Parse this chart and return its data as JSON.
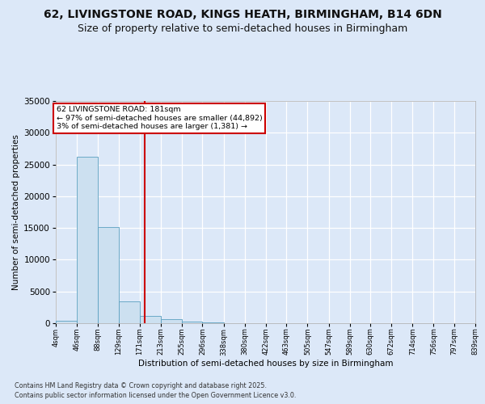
{
  "title_line1": "62, LIVINGSTONE ROAD, KINGS HEATH, BIRMINGHAM, B14 6DN",
  "title_line2": "Size of property relative to semi-detached houses in Birmingham",
  "xlabel": "Distribution of semi-detached houses by size in Birmingham",
  "ylabel": "Number of semi-detached properties",
  "footnote1": "Contains HM Land Registry data © Crown copyright and database right 2025.",
  "footnote2": "Contains public sector information licensed under the Open Government Licence v3.0.",
  "annotation_title": "62 LIVINGSTONE ROAD: 181sqm",
  "annotation_line1": "← 97% of semi-detached houses are smaller (44,892)",
  "annotation_line2": "3% of semi-detached houses are larger (1,381) →",
  "property_size": 181,
  "bin_edges": [
    4,
    46,
    88,
    129,
    171,
    213,
    255,
    296,
    338,
    380,
    422,
    463,
    505,
    547,
    589,
    630,
    672,
    714,
    756,
    797,
    839
  ],
  "bin_labels": [
    "4sqm",
    "46sqm",
    "88sqm",
    "129sqm",
    "171sqm",
    "213sqm",
    "255sqm",
    "296sqm",
    "338sqm",
    "380sqm",
    "422sqm",
    "463sqm",
    "505sqm",
    "547sqm",
    "589sqm",
    "630sqm",
    "672sqm",
    "714sqm",
    "756sqm",
    "797sqm",
    "839sqm"
  ],
  "bar_values": [
    400,
    26200,
    15200,
    3400,
    1100,
    600,
    280,
    110,
    45,
    18,
    10,
    5,
    3,
    2,
    1,
    1,
    0,
    0,
    0,
    0
  ],
  "bar_color": "#cce0f0",
  "bar_edge_color": "#5a9fc0",
  "vline_color": "#cc0000",
  "vline_x": 181,
  "ylim": [
    0,
    35000
  ],
  "yticks": [
    0,
    5000,
    10000,
    15000,
    20000,
    25000,
    30000,
    35000
  ],
  "bg_color": "#dce8f8",
  "plot_bg_color": "#dce8f8",
  "annotation_box_facecolor": "#ffffff",
  "annotation_box_edgecolor": "#cc0000",
  "grid_color": "#ffffff",
  "title_fontsize": 10,
  "subtitle_fontsize": 9,
  "axis_label_fontsize": 7.5,
  "tick_fontsize": 7.5,
  "xtick_fontsize": 6.0,
  "footnote_fontsize": 5.8
}
